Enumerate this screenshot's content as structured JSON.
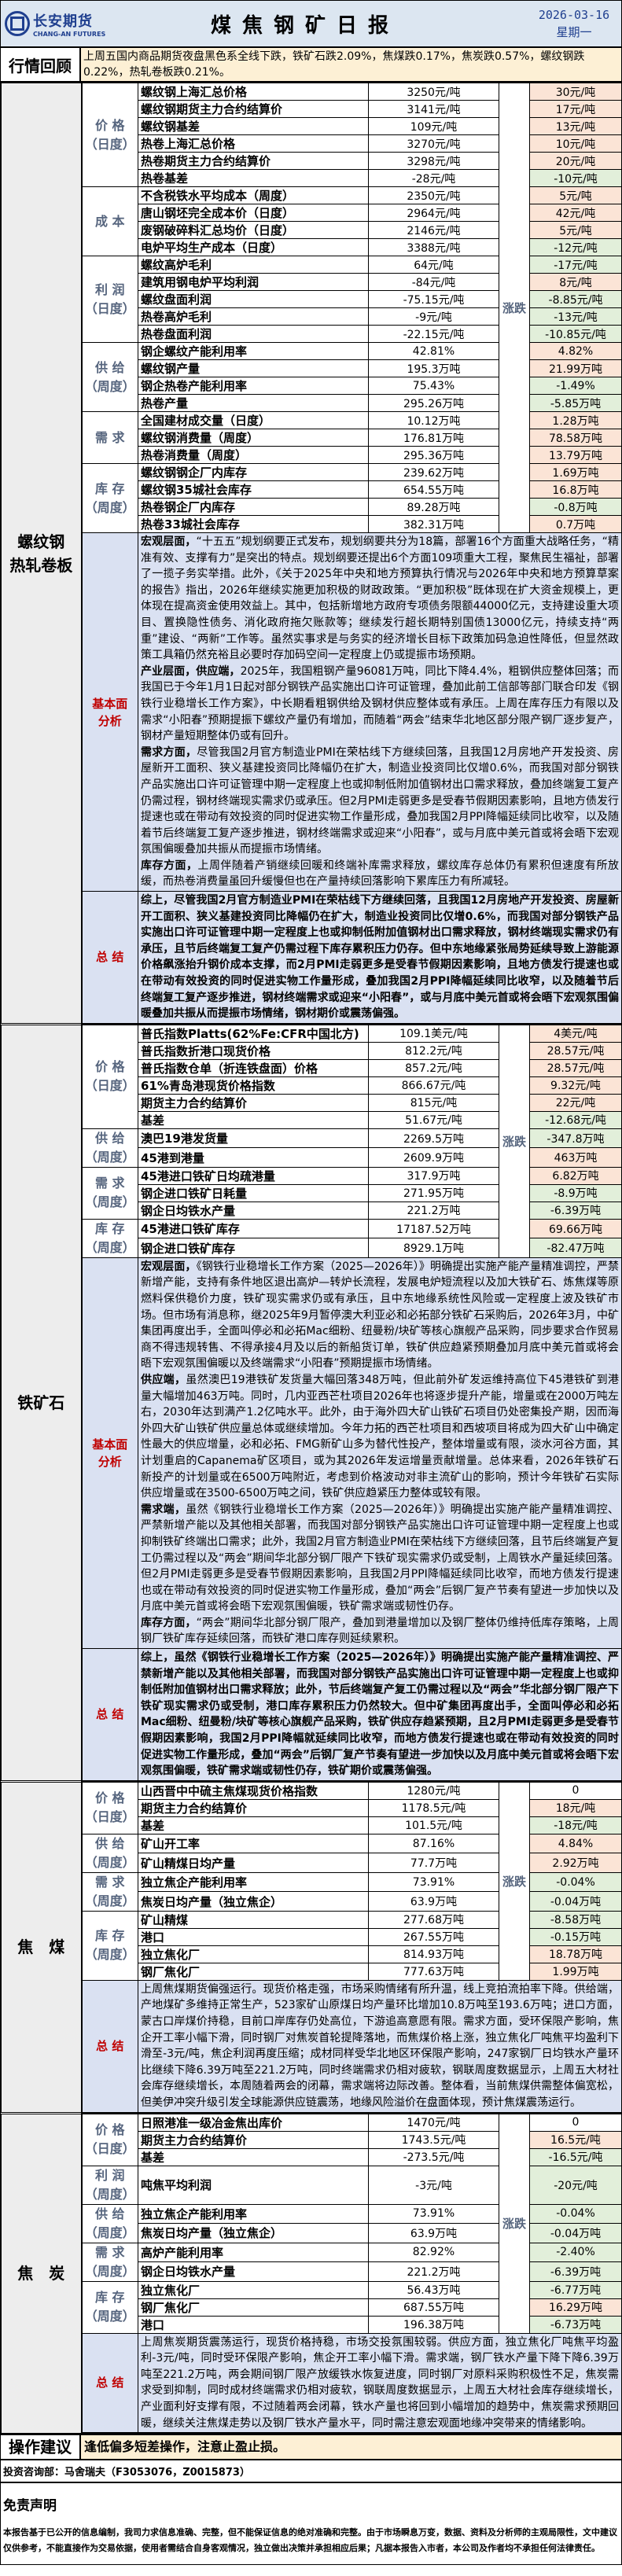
{
  "header": {
    "logo_cn": "长安期货",
    "logo_en": "CHANG-AN FUTURES",
    "title": "煤焦钢矿日报",
    "date": "2026-03-16",
    "weekday": "星期一"
  },
  "review": {
    "label": "行情回顾",
    "text": "上周五国内商品期货夜盘黑色系全线下跌，铁矿石跌2.09%，焦煤跌0.17%，焦炭跌0.57%，螺纹钢跌0.22%，热轧卷板跌0.21%。"
  },
  "change_label": "涨跌",
  "colors": {
    "up": "#fbe4d6",
    "down": "#e2efda",
    "analysis_bg": "#dae1f2",
    "review_bg": "#fdf0d5",
    "header_bg": "#dce6f1"
  },
  "sections": [
    {
      "name": "螺纹钢\n热轧卷板",
      "groups": [
        {
          "label": "价 格\n（日度）",
          "rows": [
            [
              "螺纹钢上海汇总价格",
              "3250元/吨",
              "30元/吨"
            ],
            [
              "螺纹钢期货主力合约结算价",
              "3141元/吨",
              "17元/吨"
            ],
            [
              "螺纹钢基差",
              "109元/吨",
              "13元/吨"
            ],
            [
              "热卷上海汇总价格",
              "3270元/吨",
              "10元/吨"
            ],
            [
              "热卷期货主力合约结算价",
              "3298元/吨",
              "20元/吨"
            ],
            [
              "热卷基差",
              "-28元/吨",
              "-10元/吨"
            ]
          ]
        },
        {
          "label": "成 本",
          "rows": [
            [
              "不含税铁水平均成本（周度）",
              "2350元/吨",
              "5元/吨"
            ],
            [
              "唐山钢坯完全成本价（日度）",
              "2964元/吨",
              "42元/吨"
            ],
            [
              "废钢破碎料汇总均价（日度）",
              "2146元/吨",
              "5元/吨"
            ],
            [
              "电炉平均生产成本（日度）",
              "3388元/吨",
              "-12元/吨"
            ]
          ]
        },
        {
          "label": "利 润\n（日度）",
          "rows": [
            [
              "螺纹高炉毛利",
              "64元/吨",
              "-17元/吨"
            ],
            [
              "建筑用钢电炉平均利润",
              "-84元/吨",
              "8元/吨"
            ],
            [
              "螺纹盘面利润",
              "-75.15元/吨",
              "-8.85元/吨"
            ],
            [
              "热卷高炉毛利",
              "-9元/吨",
              "-13元/吨"
            ],
            [
              "热卷盘面利润",
              "-22.15元/吨",
              "-10.85元/吨"
            ]
          ]
        },
        {
          "label": "供 给\n（周度）",
          "rows": [
            [
              "钢企螺纹产能利用率",
              "42.81%",
              "4.82%"
            ],
            [
              "螺纹钢产量",
              "195.3万吨",
              "21.99万吨"
            ],
            [
              "钢企热卷产能利用率",
              "75.43%",
              "-1.49%"
            ],
            [
              "热卷产量",
              "295.26万吨",
              "-5.85万吨"
            ]
          ]
        },
        {
          "label": "需 求",
          "rows": [
            [
              "全国建材成交量（日度）",
              "10.12万吨",
              "1.28万吨"
            ],
            [
              "螺纹钢消费量（周度）",
              "176.81万吨",
              "78.58万吨"
            ],
            [
              "热卷消费量（周度）",
              "295.36万吨",
              "13.79万吨"
            ]
          ]
        },
        {
          "label": "库 存\n（周度）",
          "rows": [
            [
              "螺纹钢钢企厂内库存",
              "239.62万吨",
              "1.69万吨"
            ],
            [
              "螺纹钢35城社会库存",
              "654.55万吨",
              "16.8万吨"
            ],
            [
              "热卷钢企厂内库存",
              "89.28万吨",
              "-0.8万吨"
            ],
            [
              "热卷33城社会库存",
              "382.31万吨",
              "0.7万吨"
            ]
          ]
        }
      ],
      "analysis_label": "基本面\n分析",
      "analysis": [
        {
          "lead": "宏观层面，",
          "text": "“十五五”规划纲要正式发布，规划纲要共分为18篇，部署16个方面重大战略任务，“精准有效、支撑有力”是突出的特点。规划纲要还提出6个方面109项重大工程，聚焦民生福祉，部署了一揽子务实举措。此外，《关于2025年中央和地方预算执行情况与2026年中央和地方预算草案的报告》指出，2026年继续实施更加积极的财政政策。“更加积极”既体现在扩大资金规模上，更体现在提高资金使用效益上。其中，包括新增地方政府专项债务限额44000亿元，支持建设重大项目、置换隐性债务、消化政府拖欠账款等；继续发行超长期特别国债13000亿元，持续支持“两重”建设、“两新”工作等。虽然实事求是与务实的经济增长目标下政策加码急迫性降低，但显然政策工具箱仍然充裕且必要时存加码空间一定程度上仍或提振市场预期。"
        },
        {
          "lead": "产业层面，供应端，",
          "text": "2025年，我国粗钢产量96081万吨，同比下降4.4%，粗钢供应整体回落；而我国已于今年1月1日起对部分钢铁产品实施出口许可证管理，叠加此前工信部等部门联合印发《钢铁行业稳增长工作方案》，中长期看粗钢供给及钢材供应整体或有承压。上周在库存压力有限以及需求“小阳春”预期提振下螺纹产量仍有增加，而随着“两会”结束华北地区部分限产钢厂逐步复产，钢材产量短期整体仍或有回升。"
        },
        {
          "lead": "需求方面，",
          "text": "尽管我国2月官方制造业PMI在荣枯线下方继续回落，且我国12月房地产开发投资、房屋新开工面积、狭义基建投资同比降幅仍在扩大，制造业投资同比仅增0.6%，而我国对部分钢铁产品实施出口许可证管理中期一定程度上也或抑制低附加值钢材出口需求释放，叠加终端复工复产仍需过程，钢材终端现实需求仍或承压。但2月PMI走弱更多是受春节假期因素影响，且地方债发行提速也或在带动有效投资的同时促进实物工作量形成，叠加我国2月PPI降幅延续同比收窄，以及随着节后终端复工复产逐步推进，钢材终端需求或迎来“小阳春”，或与月底中美元首或将会晤下宏观氛围偏暖叠加共振从而提振市场情绪。"
        },
        {
          "lead": "库存方面，",
          "text": "上周伴随着产销继续回暖和终端补库需求释放，螺纹库存总体仍有累积但速度有所放缓，而热卷消费量虽回升缓慢但也在产量持续回落影响下累库压力有所减轻。"
        }
      ],
      "summary_label": "总 结",
      "summary": "综上，尽管我国2月官方制造业PMI在荣枯线下方继续回落，且我国12月房地产开发投资、房屋新开工面积、狭义基建投资同比降幅仍在扩大，制造业投资同比仅增0.6%，而我国对部分钢铁产品实施出口许可证管理中期一定程度上也或抑制低附加值钢材出口需求释放，钢材终端现实需求仍有承压，且节后终端复工复产仍需过程下库存累积压力仍存。但中东地缘紧张局势延续导致上游能源价格飙涨抬升钢价成本支撑，而2月PMI走弱更多是受春节假期因素影响，且地方债发行提速也或在带动有效投资的同时促进实物工作量形成，叠加我国2月PPI降幅延续同比收窄，以及随着节后终端复工复产逐步推进，钢材终端需求或迎来“小阳春”，或与月底中美元首或将会晤下宏观氛围偏暖叠加共振从而提振市场情绪，钢材期价或震荡偏强。"
    },
    {
      "name": "铁矿石",
      "groups": [
        {
          "label": "价 格\n（日度）",
          "rows": [
            [
              "普氏指数Platts(62%Fe:CFR中国北方)",
              "109.1美元/吨",
              "4美元/吨"
            ],
            [
              "普氏指数折港口现货价格",
              "812.2元/吨",
              "28.57元/吨"
            ],
            [
              "普氏指数仓单（折连铁盘面）价格",
              "857.2元/吨",
              "28.57元/吨"
            ],
            [
              "61%青岛港现货价格指数",
              "866.67元/吨",
              "9.32元/吨"
            ],
            [
              "期货主力合约结算价",
              "815元/吨",
              "22元/吨"
            ],
            [
              "基差",
              "51.67元/吨",
              "-12.68元/吨"
            ]
          ]
        },
        {
          "label": "供 给\n（周度）",
          "rows": [
            [
              "澳巴19港发货量",
              "2269.5万吨",
              "-347.8万吨"
            ],
            [
              "45港到港量",
              "2609.9万吨",
              "463万吨"
            ]
          ]
        },
        {
          "label": "需 求\n（周度）",
          "rows": [
            [
              "45港进口铁矿日均疏港量",
              "317.9万吨",
              "6.82万吨"
            ],
            [
              "钢企进口铁矿日耗量",
              "271.95万吨",
              "-8.9万吨"
            ],
            [
              "钢企日均铁水产量",
              "221.2万吨",
              "-6.39万吨"
            ]
          ]
        },
        {
          "label": "库 存\n（周度）",
          "rows": [
            [
              "45港进口铁矿库存",
              "17187.52万吨",
              "69.66万吨"
            ],
            [
              "钢企进口铁矿库存",
              "8929.1万吨",
              "-82.47万吨"
            ]
          ]
        }
      ],
      "analysis_label": "基本面\n分析",
      "analysis": [
        {
          "lead": "宏观层面，",
          "text": "《钢铁行业稳增长工作方案（2025—2026年）》明确提出实施产能产量精准调控，严禁新增产能，支持有条件地区退出高炉—转炉长流程，发展电炉短流程以及加大铁矿石、炼焦煤等原燃料保供稳价力度，铁矿现实需求仍或有承压，且中东地缘系统性风险或一定程度上波及铁矿市场。但市场有消息称，继2025年9月暂停澳大利亚必和必拓部分铁矿石采购后，2026年3月，中矿集团再度出手，全面叫停必和必拓Mac细粉、纽曼粉/块矿等核心旗舰产品采购，同步要求合作贸易商不得违规转售、不得承接4月及以后的新船货订单，铁矿供应趋紧预期叠加月底中美元首或将会晤下宏观氛围偏暖以及终端需求“小阳春”预期提振市场情绪。"
        },
        {
          "lead": "供应端，",
          "text": "虽然澳巴19港铁矿发货量大幅回落348万吨，但此前外矿发运维持高位下45港铁矿到港量大幅增加463万吨。同时，几内亚西芒杜项目2026年也将逐步提升产能，增量或在2000万吨左右，2030年达到满产1.2亿吨水平。此外，由于海外四大矿山铁矿石项目仍处密集投产期，因而海外四大矿山铁矿供应量总体或继续增加。今年力拓的西芒杜项目和西坡项目将成为四大矿山中确定性最大的供应增量，必和必拓、FMG新矿山多为替代性投产，整体增量或有限，淡水河谷方面，其计划重启的Capanema矿区项目，或为其2026年发运增量贡献增量。总体来看，2026年铁矿石新投产的计划量或在6500万吨附近，考虑到价格波动对非主流矿山的影响，预计今年铁矿石实际供应增量或在3500-6500万吨之间，铁矿供应趋紧压力整体或较有限。"
        },
        {
          "lead": "需求端，",
          "text": "虽然《钢铁行业稳增长工作方案（2025—2026年）》明确提出实施产能产量精准调控、严禁新增产能以及其他相关部署，而我国对部分钢铁产品实施出口许可证管理中期一定程度上也或抑制铁矿终端出口需求；此外，我国2月官方制造业PMI在荣枯线下方继续回落，且节后终端复产复工仍需过程以及“两会”期间华北部分钢厂限产下铁矿现实需求仍或受制，上周铁水产量延续回落。但2月PMI走弱更多是受春节假期因素影响，且我国2月PPI降幅延续同比收窄，而地方债发行提速也或在带动有效投资的同时促进实物工作量形成，叠加“两会”后钢厂复产节奏有望进一步加快以及月底中美元首或将会晤下宏观氛围偏暖，铁矿需求端或韧性仍存。"
        },
        {
          "lead": "库存方面，",
          "text": "“两会”期间华北部分钢厂限产，叠加到港量增加以及钢厂整体仍维持低库存策略，上周钢厂铁矿库存延续回落，而铁矿港口库存则延续累积。"
        }
      ],
      "summary_label": "总 结",
      "summary": "综上，虽然《钢铁行业稳增长工作方案（2025—2026年）》明确提出实施产能产量精准调控、严禁新增产能以及其他相关部署，而我国对部分钢铁产品实施出口许可证管理中期一定程度上也或抑制低附加值钢材出口需求释放；此外，节后终端复产复工仍需过程以及“两会”华北部分钢厂限产下铁矿现实需求仍或受制，港口库存累积压力仍然较大。但中矿集团再度出手，全面叫停必和必拓Mac细粉、纽曼粉/块矿等核心旗舰产品采购，铁矿供应存趋紧预期，且2月PMI走弱更多是受春节假期因素影响，我国2月PPI降幅就延续同比收窄，而地方债发行提速也或在带动有效投资的同时促进实物工作量形成，叠加“两会”后钢厂复产节奏有望进一步加快以及月底中美元首或将会晤下宏观氛围偏暖，铁矿需求端或韧性仍存，铁矿期价或震荡偏强。"
    },
    {
      "name": "焦　煤",
      "groups": [
        {
          "label": "价 格\n（日度）",
          "rows": [
            [
              "山西晋中中硫主焦煤现货价格指数",
              "1280元/吨",
              "0"
            ],
            [
              "期货主力合约结算价",
              "1178.5元/吨",
              "18元/吨"
            ],
            [
              "基差",
              "101.5元/吨",
              "-18元/吨"
            ]
          ]
        },
        {
          "label": "供 给\n（周度）",
          "rows": [
            [
              "矿山开工率",
              "87.16%",
              "4.84%"
            ],
            [
              "矿山精煤日均产量",
              "77.7万吨",
              "2.92万吨"
            ]
          ]
        },
        {
          "label": "需 求\n（周度）",
          "rows": [
            [
              "独立焦企产能利用率",
              "73.91%",
              "-0.04%"
            ],
            [
              "焦炭日均产量（独立焦企）",
              "63.9万吨",
              "-0.04万吨"
            ]
          ]
        },
        {
          "label": "库 存\n（周度）",
          "rows": [
            [
              "矿山精煤",
              "277.68万吨",
              "-8.58万吨"
            ],
            [
              "港口",
              "267.55万吨",
              "-0.15万吨"
            ],
            [
              "独立焦化厂",
              "814.93万吨",
              "18.78万吨"
            ],
            [
              "钢厂焦化厂",
              "777.63万吨",
              "1.99万吨"
            ]
          ]
        }
      ],
      "summary_label": "总 结",
      "summary_plain": "上周焦煤期货偏强运行。现货价格走强，市场采购情绪有所升温，线上竞拍流拍率下降。供给端，产地煤矿多维持正常生产，523家矿山原煤日均产量环比增加10.8万吨至193.6万吨；进口方面，蒙古口岸煤价持稳，目前口岸库存仍处高位，下游追高意愿有限。需求方面，受环保限产影响，焦企开工率小幅下滑，同时钢厂对焦炭首轮提降落地，而焦煤价格上涨，独立焦化厂吨焦平均盈利下滑至-3元/吨，焦企利润再度压缩；成材同样受华北地区环保限产影响，247家钢厂日均铁水产量环比继续下降6.39万吨至221.2万吨，同时终端需求仍相对疲软，钢联周度数据显示，上周五大材社会库存继续增长，本周随着两会的闭幕，需求端将边际改善。整体看，当前焦煤供需整体偏宽松，但美伊冲突升级引发全球能源供应链震荡，地缘风险溢价在盘面体现，预计焦煤震荡运行。"
    },
    {
      "name": "焦　炭",
      "groups": [
        {
          "label": "价 格\n（日度）",
          "rows": [
            [
              "日照港准一级冶金焦出库价",
              "1470元/吨",
              "0"
            ],
            [
              "期货主力合约结算价",
              "1743.5元/吨",
              "16.5元/吨"
            ],
            [
              "基差",
              "-273.5元/吨",
              "-16.5元/吨"
            ]
          ]
        },
        {
          "label": "利 润\n（周度）",
          "tall": true,
          "rows": [
            [
              "吨焦平均利润",
              "-3元/吨",
              "-20元/吨"
            ]
          ]
        },
        {
          "label": "供 给\n（周度）",
          "rows": [
            [
              "独立焦企产能利用率",
              "73.91%",
              "-0.04%"
            ],
            [
              "焦炭日均产量（独立焦企）",
              "63.9万吨",
              "-0.04万吨"
            ]
          ]
        },
        {
          "label": "需 求\n（周度）",
          "rows": [
            [
              "高炉产能利用率",
              "82.92%",
              "-2.40%"
            ],
            [
              "钢企日均铁水产量",
              "221.2万吨",
              "-6.39万吨"
            ]
          ]
        },
        {
          "label": "库 存\n（周度）",
          "rows": [
            [
              "独立焦化厂",
              "56.43万吨",
              "-6.77万吨"
            ],
            [
              "钢厂焦化厂",
              "687.55万吨",
              "16.29万吨"
            ],
            [
              "港口",
              "196.38万吨",
              "-6.73万吨"
            ]
          ]
        }
      ],
      "summary_label": "总 结",
      "summary_plain": "上周焦炭期货震荡运行，现货价格持稳，市场交投氛围较弱。供应方面，独立焦化厂吨焦平均盈利-3元/吨，同时受环保限产影响，焦企开工率小幅下滑。需求端，钢厂铁水产量下降下降6.39万吨至221.2万吨，两会期间钢厂限产放缓铁水恢复进度，同时钢厂对原料采购积极性不足，焦炭需求受到抑制，同时成材终端需求仍相对疲软，钢联周度数据显示，上周五大材社会库存继续增长，产业面利好支撑有限，不过随着两会闭幕，铁水产量也将回到小幅增加的趋势中，焦炭需求预期回暖，继续关注焦煤走势以及钢厂铁水产量水平，同时需注意宏观面地缘冲突带来的情绪影响。"
    }
  ],
  "advice": {
    "label": "操作建议",
    "text": "逢低偏多短差操作，注意止盈止损。"
  },
  "contact": "投资咨询部：马舍瑞夫（F3053076，Z0015873）",
  "disclaimer": {
    "title": "免责声明",
    "text": "本报告基于已公开的信息编制，我司力求信息准确、完整，但不能保证信息的绝对准确和完整。由于市场瞬息万变，数据、资料及分析师的主观局限性，文中建议仅供参考，不能直接作为交易依据，使用者需结合自身客观情况，独立做出决策并承担相应后果；凡据本报告入市者，本公司及作者均不承担任何法律责任。"
  }
}
